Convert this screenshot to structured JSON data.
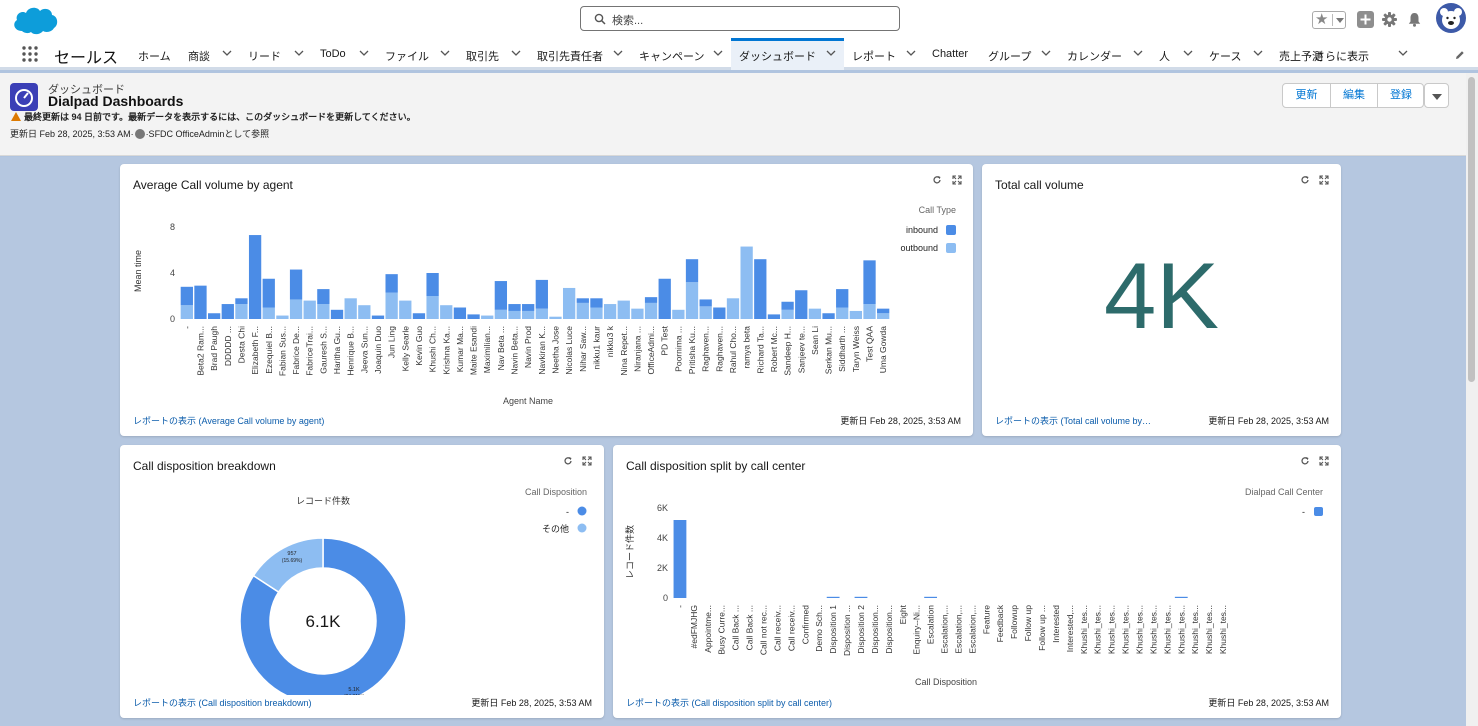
{
  "search": {
    "placeholder": "検索..."
  },
  "app": {
    "name": "セールス"
  },
  "nav": {
    "items": [
      {
        "label": "ホーム",
        "chevron": false
      },
      {
        "label": "商談",
        "chevron": true
      },
      {
        "label": "リード",
        "chevron": true
      },
      {
        "label": "ToDo",
        "chevron": true
      },
      {
        "label": "ファイル",
        "chevron": true
      },
      {
        "label": "取引先",
        "chevron": true
      },
      {
        "label": "取引先責任者",
        "chevron": true
      },
      {
        "label": "キャンペーン",
        "chevron": true
      },
      {
        "label": "ダッシュボード",
        "chevron": true,
        "active": true
      },
      {
        "label": "レポート",
        "chevron": true
      },
      {
        "label": "Chatter",
        "chevron": false
      },
      {
        "label": "グループ",
        "chevron": true
      },
      {
        "label": "カレンダー",
        "chevron": true
      },
      {
        "label": "人",
        "chevron": true
      },
      {
        "label": "ケース",
        "chevron": true
      },
      {
        "label": "売上予測",
        "chevron": false
      },
      {
        "label": "さらに表示",
        "chevron": true
      }
    ]
  },
  "header": {
    "object_type": "ダッシュボード",
    "title": "Dialpad Dashboards",
    "warning": "最終更新は 94 日前です。最新データを表示するには、このダッシュボードを更新してください。",
    "updated_prefix": "更新日 Feb 28, 2025, 3:53 AM·",
    "updated_suffix": "·SFDC OfficeAdminとして参照",
    "buttons": {
      "refresh": "更新",
      "edit": "編集",
      "subscribe": "登録"
    }
  },
  "colors": {
    "inbound": "#4b8ce6",
    "outbound": "#8dbdf2",
    "metric": "#2d6b6b",
    "link": "#0b5cab"
  },
  "widgets": {
    "avg_call": {
      "title": "Average Call volume by agent",
      "link": "レポートの表示 (Average Call volume by agent)",
      "date": "更新日 Feb 28, 2025, 3:53 AM",
      "ylabel": "Mean time",
      "xlabel": "Agent Name",
      "legend_title": "Call Type"
    },
    "total": {
      "title": "Total call volume",
      "metric": "4K",
      "link": "レポートの表示 (Total call volume by…",
      "date": "更新日 Feb 28, 2025, 3:53 AM"
    },
    "disposition": {
      "title": "Call disposition breakdown",
      "subtitle": "レコード件数",
      "center": "6.1K",
      "legend_title": "Call Disposition",
      "link": "レポートの表示 (Call disposition breakdown)",
      "date": "更新日 Feb 28, 2025, 3:53 AM",
      "label_small_value": "957",
      "label_small_pct": "(15.69%)",
      "label_big_value": "5.1K",
      "label_big_pct": "(84.31%)"
    },
    "split": {
      "title": "Call disposition split by call center",
      "ylabel": "レコード件数",
      "xlabel": "Call Disposition",
      "legend_title": "Dialpad Call Center",
      "link": "レポートの表示 (Call disposition split by call center)",
      "date": "更新日 Feb 28, 2025, 3:53 AM"
    }
  },
  "chart_data": [
    {
      "type": "bar",
      "stacked": true,
      "title": "Average Call volume by agent",
      "xlabel": "Agent Name",
      "ylabel": "Mean time",
      "ylim": [
        0,
        8
      ],
      "yticks": [
        "0",
        "4",
        "8"
      ],
      "legend_title": "Call Type",
      "legend_position": "top-right",
      "categories": [
        "-",
        "Beta2 Ram...",
        "Brad Paugh",
        "DDDDD ...",
        "Desta Chi",
        "Elizabeth F...",
        "Ezequiel B...",
        "Fabian Sus...",
        "Fabrice De...",
        "FabriceTrai...",
        "Gauresh S...",
        "Haritha Gu...",
        "Henrique B...",
        "Jeeva Sun...",
        "Joaquin Duo",
        "Jun Ling",
        "Kelly Searle",
        "Kevin Guo",
        "Khushi Ch...",
        "Krishna Ka...",
        "Kumar Ma...",
        "Maite Esandi",
        "Maximilian...",
        "Nav Beta ...",
        "Navin Beta...",
        "Navin Prod",
        "Navkiran K...",
        "Neetha Jose",
        "Nicolas Luce",
        "Nihar Saw...",
        "nikku1 kaur",
        "nikku3 k",
        "Nina Repet...",
        "Niranjana ...",
        "OfficeAdmi...",
        "PD Test",
        "Poornima ...",
        "Pritisha Ku...",
        "Raghaven...",
        "Raghaven...",
        "Rahul Cho...",
        "ramya beta",
        "Richard Ta...",
        "Robert Mc...",
        "Sandeep H...",
        "Sanjeev te...",
        "Sean Li",
        "Serkan Mu...",
        "Siddharth ...",
        "Taryn Weiss",
        "Test QAA",
        "Uma Gowda"
      ],
      "series": [
        {
          "name": "inbound",
          "values": [
            1.6,
            2.9,
            0.5,
            1.3,
            0.5,
            7.3,
            2.5,
            0,
            2.6,
            0,
            1.3,
            0.8,
            0,
            0,
            0.3,
            1.6,
            0,
            0.5,
            2.0,
            0,
            1.0,
            0.4,
            0,
            2.5,
            0.6,
            0.6,
            2.5,
            0,
            0,
            0.4,
            0.8,
            0,
            0,
            0,
            0.5,
            3.5,
            0,
            2.0,
            0.6,
            1.0,
            0,
            0,
            5.2,
            0.4,
            0.7,
            2.5,
            0,
            0.5,
            1.6,
            0,
            3.8,
            0.4
          ]
        },
        {
          "name": "outbound",
          "values": [
            1.2,
            0,
            0,
            0,
            1.3,
            0,
            1.0,
            0.3,
            1.7,
            1.6,
            1.3,
            0,
            1.8,
            1.2,
            0,
            2.3,
            1.6,
            0,
            2.0,
            1.2,
            0,
            0,
            0.3,
            0.8,
            0.7,
            0.7,
            0.9,
            0.2,
            2.7,
            1.4,
            1.0,
            1.3,
            1.6,
            0.9,
            1.4,
            0,
            0.8,
            3.2,
            1.1,
            0,
            1.8,
            6.3,
            0,
            0,
            0.8,
            0,
            0.9,
            0,
            1.0,
            0.7,
            1.3,
            0.5
          ]
        }
      ]
    },
    {
      "type": "pie",
      "donut": true,
      "title": "Call disposition breakdown",
      "subtitle": "レコード件数",
      "total": "6.1K",
      "legend_title": "Call Disposition",
      "legend_position": "top-right",
      "slices": [
        {
          "label": "-",
          "value": 5100,
          "percent": 84.31
        },
        {
          "label": "その他",
          "value": 957,
          "percent": 15.69
        }
      ]
    },
    {
      "type": "bar",
      "title": "Call disposition split by call center",
      "xlabel": "Call Disposition",
      "ylabel": "レコード件数",
      "ylim": [
        0,
        6000
      ],
      "yticks": [
        "0",
        "2K",
        "4K",
        "6K"
      ],
      "legend_title": "Dialpad Call Center",
      "legend_position": "top-right",
      "categories": [
        "-",
        "#edFMJHG",
        "Appointme...",
        "Busy Curre...",
        "Call Back ...",
        "Call Back ...",
        "Call not rec...",
        "Call receiv...",
        "Call receiv...",
        "Confirmed",
        "Demo Sch...",
        "Disposition 1",
        "Disposition ...",
        "Disposition 2",
        "Disposition...",
        "Disposition...",
        "Eight",
        "Enquiry--Ni...",
        "Escalation",
        "Escalation,...",
        "Escalation,...",
        "Escalation,...",
        "Feature",
        "Feedback",
        "Followup",
        "Follow up",
        "Follow up ...",
        "Interested",
        "Interested,...",
        "Khushi_tes...",
        "Khushi_tes...",
        "Khushi_tes...",
        "Khushi_tes...",
        "Khushi_tes...",
        "Khushi_tes...",
        "Khushi_tes...",
        "Khushi_tes...",
        "Khushi_tes...",
        "Khushi_tes...",
        "Khushi_tes..."
      ],
      "series": [
        {
          "name": "-",
          "values": [
            5200,
            0,
            0,
            0,
            0,
            0,
            0,
            0,
            0,
            0,
            0,
            80,
            0,
            30,
            0,
            0,
            0,
            0,
            40,
            0,
            0,
            0,
            0,
            0,
            0,
            0,
            0,
            0,
            0,
            0,
            0,
            0,
            0,
            0,
            0,
            0,
            30,
            0,
            0,
            0
          ]
        }
      ]
    }
  ]
}
